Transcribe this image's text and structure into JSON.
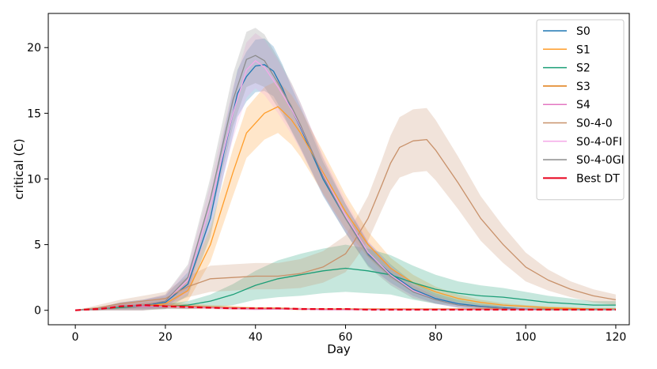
{
  "chart_data": {
    "type": "line",
    "xlabel": "Day",
    "ylabel": "critical (C)",
    "xlim": [
      -6,
      123
    ],
    "ylim": [
      -1.1,
      22.6
    ],
    "xticks": [
      0,
      20,
      40,
      60,
      80,
      100,
      120
    ],
    "yticks": [
      0,
      5,
      10,
      15,
      20
    ],
    "grid": false,
    "legend": "top-right",
    "series": [
      {
        "name": "S0",
        "color": "#1f77b4",
        "x": [
          0,
          5,
          10,
          15,
          20,
          25,
          30,
          33,
          36,
          38,
          40,
          42,
          44,
          46,
          48,
          50,
          55,
          60,
          65,
          70,
          75,
          80,
          85,
          90,
          95,
          100,
          105,
          110,
          115,
          120
        ],
        "y": [
          0,
          0.1,
          0.3,
          0.4,
          0.6,
          2.0,
          7.0,
          12.0,
          16.5,
          17.8,
          18.6,
          18.7,
          18.2,
          16.9,
          15.3,
          13.9,
          10.0,
          7.0,
          4.3,
          2.8,
          1.6,
          0.9,
          0.5,
          0.3,
          0.2,
          0.1,
          0.1,
          0.05,
          0.05,
          0.05
        ],
        "band": [
          0,
          0.1,
          0.3,
          0.4,
          0.5,
          0.9,
          1.4,
          1.6,
          1.8,
          1.9,
          2.0,
          2.0,
          1.9,
          1.8,
          1.7,
          1.6,
          1.3,
          1.1,
          0.9,
          0.7,
          0.5,
          0.4,
          0.3,
          0.2,
          0.15,
          0.1,
          0.1,
          0.05,
          0.05,
          0.05
        ]
      },
      {
        "name": "S1",
        "color": "#ff9d2a",
        "x": [
          0,
          5,
          10,
          15,
          20,
          25,
          30,
          35,
          38,
          42,
          45,
          48,
          50,
          55,
          60,
          65,
          70,
          75,
          80,
          85,
          90,
          95,
          100,
          105,
          110,
          115,
          120
        ],
        "y": [
          0,
          0.1,
          0.2,
          0.3,
          0.5,
          1.5,
          5.0,
          10.5,
          13.5,
          15.0,
          15.5,
          14.5,
          13.5,
          10.5,
          7.5,
          5.0,
          3.2,
          2.1,
          1.4,
          0.9,
          0.6,
          0.4,
          0.3,
          0.2,
          0.15,
          0.1,
          0.1
        ],
        "band": [
          0,
          0.1,
          0.2,
          0.3,
          0.4,
          0.8,
          1.3,
          1.8,
          1.9,
          2.0,
          2.0,
          1.9,
          1.8,
          1.6,
          1.3,
          1.0,
          0.8,
          0.6,
          0.4,
          0.3,
          0.2,
          0.15,
          0.1,
          0.1,
          0.1,
          0.05,
          0.05
        ]
      },
      {
        "name": "S2",
        "color": "#1b9e77",
        "x": [
          0,
          5,
          10,
          15,
          20,
          25,
          30,
          35,
          40,
          45,
          50,
          55,
          60,
          65,
          70,
          75,
          80,
          85,
          90,
          95,
          100,
          105,
          110,
          115,
          120
        ],
        "y": [
          0,
          0.1,
          0.2,
          0.3,
          0.3,
          0.4,
          0.7,
          1.2,
          1.9,
          2.4,
          2.7,
          3.0,
          3.2,
          3.0,
          2.7,
          2.1,
          1.6,
          1.3,
          1.1,
          1.0,
          0.8,
          0.6,
          0.5,
          0.4,
          0.4
        ],
        "band": [
          0,
          0.1,
          0.1,
          0.2,
          0.2,
          0.3,
          0.5,
          0.8,
          1.1,
          1.4,
          1.6,
          1.7,
          1.8,
          1.7,
          1.5,
          1.3,
          1.1,
          0.9,
          0.8,
          0.7,
          0.6,
          0.5,
          0.4,
          0.3,
          0.3
        ]
      },
      {
        "name": "S3",
        "color": "#e07b10",
        "x": [
          0,
          5,
          10,
          15,
          20,
          25,
          30,
          35,
          40,
          45,
          50,
          55,
          60,
          65,
          70,
          75,
          80,
          85,
          90,
          95,
          100,
          105,
          110,
          115,
          120
        ],
        "y": [
          0,
          0.1,
          0.3,
          0.4,
          0.35,
          0.3,
          0.25,
          0.2,
          0.15,
          0.15,
          0.1,
          0.1,
          0.1,
          0.1,
          0.1,
          0.1,
          0.1,
          0.1,
          0.1,
          0.1,
          0.1,
          0.1,
          0.1,
          0.1,
          0.1
        ],
        "band": [
          0,
          0.1,
          0.2,
          0.2,
          0.2,
          0.2,
          0.15,
          0.15,
          0.1,
          0.1,
          0.1,
          0.05,
          0.05,
          0.05,
          0.05,
          0.05,
          0.05,
          0.05,
          0.05,
          0.05,
          0.05,
          0.05,
          0.05,
          0.05,
          0.05
        ]
      },
      {
        "name": "S4",
        "color": "#e377c2",
        "x": [
          0,
          5,
          10,
          15,
          20,
          25,
          30,
          35,
          40,
          45,
          50,
          55,
          60,
          65,
          70,
          75,
          80,
          85,
          90,
          95,
          100,
          105,
          110,
          115,
          120
        ],
        "y": [
          0,
          0.1,
          0.3,
          0.3,
          0.3,
          0.25,
          0.2,
          0.15,
          0.1,
          0.1,
          0.1,
          0.05,
          0.05,
          0.05,
          0.05,
          0.05,
          0.05,
          0.05,
          0.05,
          0.05,
          0.05,
          0.05,
          0.05,
          0.05,
          0.05
        ],
        "band": [
          0,
          0.1,
          0.2,
          0.2,
          0.2,
          0.15,
          0.1,
          0.1,
          0.1,
          0.05,
          0.05,
          0.05,
          0.05,
          0.05,
          0.05,
          0.05,
          0.05,
          0.05,
          0.05,
          0.05,
          0.05,
          0.05,
          0.05,
          0.05,
          0.05
        ]
      },
      {
        "name": "S0-4-0",
        "color": "#c8916a",
        "x": [
          0,
          5,
          10,
          15,
          20,
          25,
          30,
          35,
          40,
          45,
          50,
          55,
          60,
          62,
          65,
          68,
          70,
          72,
          75,
          78,
          80,
          85,
          90,
          95,
          100,
          105,
          110,
          115,
          120
        ],
        "y": [
          0,
          0.2,
          0.5,
          0.7,
          0.9,
          1.8,
          2.4,
          2.5,
          2.6,
          2.6,
          2.8,
          3.3,
          4.3,
          5.3,
          7.0,
          9.5,
          11.2,
          12.4,
          12.9,
          13.0,
          12.2,
          9.7,
          7.0,
          5.0,
          3.3,
          2.3,
          1.6,
          1.1,
          0.8
        ],
        "band": [
          0,
          0.2,
          0.3,
          0.4,
          0.5,
          0.8,
          1.0,
          1.0,
          1.0,
          1.0,
          1.1,
          1.2,
          1.4,
          1.5,
          1.7,
          1.9,
          2.1,
          2.3,
          2.4,
          2.4,
          2.3,
          2.0,
          1.7,
          1.4,
          1.1,
          0.8,
          0.6,
          0.5,
          0.4
        ]
      },
      {
        "name": "S0-4-0FI",
        "color": "#f4a9e8",
        "x": [
          0,
          5,
          10,
          15,
          20,
          25,
          30,
          35,
          38,
          40,
          42,
          45,
          48,
          50,
          55,
          60,
          65,
          70,
          75,
          80,
          85,
          90,
          95,
          100,
          105,
          110,
          115,
          120
        ],
        "y": [
          0,
          0.1,
          0.3,
          0.4,
          0.7,
          2.3,
          8.0,
          15.0,
          18.3,
          19.0,
          18.5,
          17.0,
          15.3,
          14.0,
          10.3,
          7.2,
          4.4,
          2.7,
          1.5,
          0.8,
          0.4,
          0.25,
          0.15,
          0.1,
          0.05,
          0.05,
          0.05,
          0.05
        ],
        "band": [
          0,
          0.1,
          0.3,
          0.4,
          0.5,
          1.0,
          1.6,
          2.0,
          2.1,
          2.1,
          2.1,
          2.0,
          1.9,
          1.8,
          1.5,
          1.2,
          0.9,
          0.7,
          0.5,
          0.3,
          0.2,
          0.15,
          0.1,
          0.1,
          0.05,
          0.05,
          0.05,
          0.05
        ]
      },
      {
        "name": "S0-4-0GI",
        "color": "#8c8c8c",
        "x": [
          0,
          5,
          10,
          15,
          20,
          25,
          30,
          35,
          38,
          40,
          42,
          45,
          48,
          50,
          55,
          60,
          65,
          70,
          75,
          80,
          85,
          90,
          95,
          100,
          105,
          110,
          115,
          120
        ],
        "y": [
          0,
          0.1,
          0.3,
          0.4,
          0.7,
          2.5,
          8.5,
          16.0,
          19.1,
          19.4,
          19.0,
          17.3,
          15.5,
          14.1,
          10.2,
          7.0,
          4.2,
          2.6,
          1.4,
          0.8,
          0.4,
          0.25,
          0.15,
          0.1,
          0.05,
          0.05,
          0.05,
          0.05
        ],
        "band": [
          0,
          0.1,
          0.3,
          0.4,
          0.5,
          1.0,
          1.6,
          2.0,
          2.1,
          2.1,
          2.0,
          1.9,
          1.8,
          1.7,
          1.4,
          1.1,
          0.9,
          0.7,
          0.5,
          0.3,
          0.2,
          0.15,
          0.1,
          0.1,
          0.05,
          0.05,
          0.05,
          0.05
        ]
      },
      {
        "name": "Best DT",
        "color": "#e8001c",
        "dashed": true,
        "x": [
          0,
          2,
          5,
          8,
          10,
          13,
          15,
          18,
          20,
          25,
          30,
          35,
          40,
          45,
          50,
          55,
          60,
          65,
          70,
          80,
          90,
          100,
          110,
          120
        ],
        "y": [
          0,
          0.05,
          0.1,
          0.2,
          0.3,
          0.35,
          0.4,
          0.35,
          0.3,
          0.25,
          0.2,
          0.15,
          0.15,
          0.15,
          0.1,
          0.1,
          0.1,
          0.05,
          0.05,
          0.05,
          0.05,
          0.05,
          0.05,
          0.05
        ]
      }
    ]
  }
}
